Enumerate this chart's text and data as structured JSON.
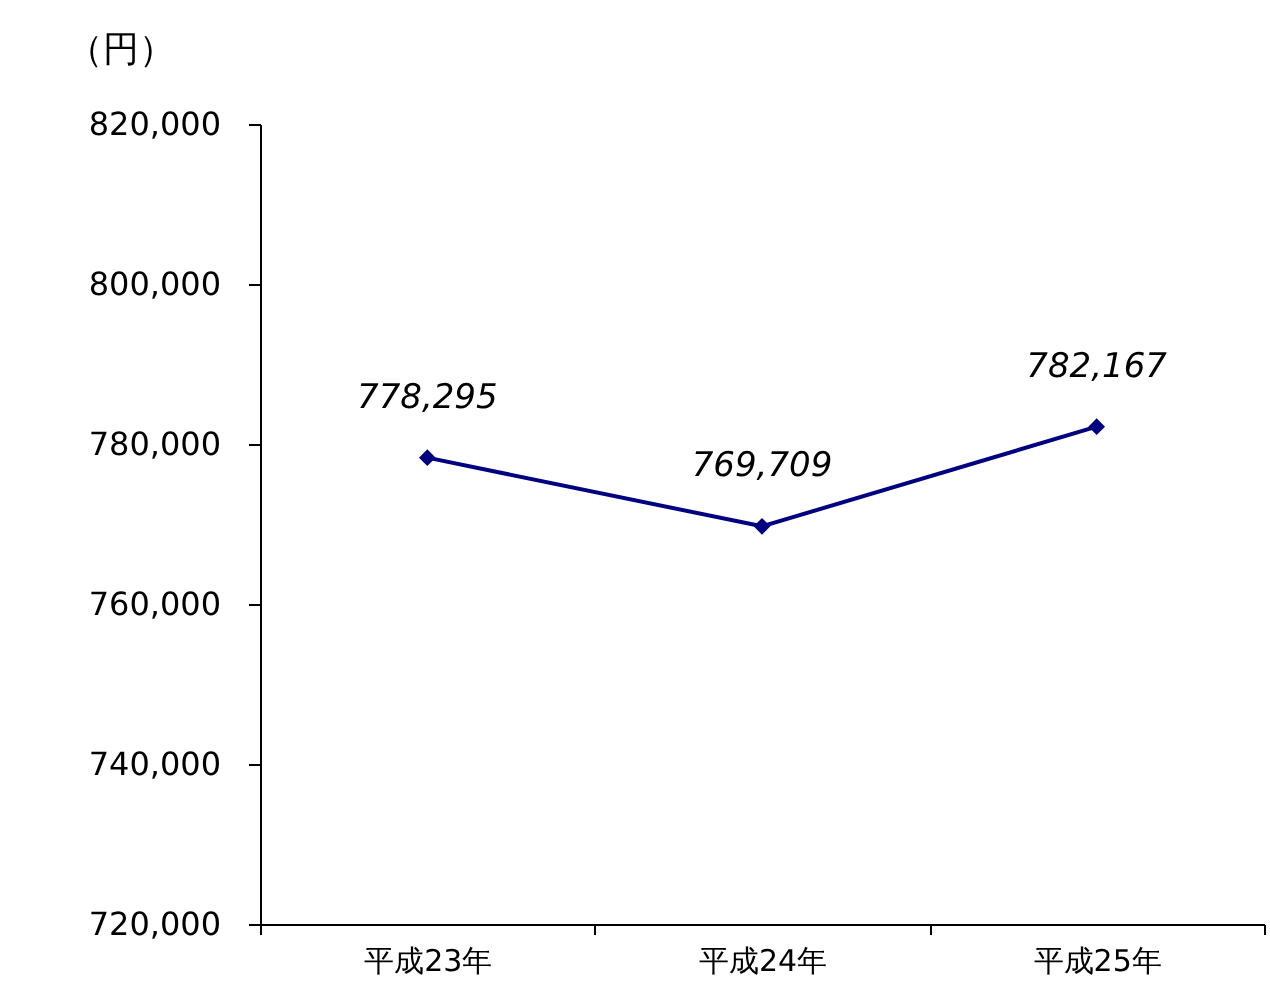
{
  "chart_data": {
    "type": "line",
    "ylabel": "（円）",
    "categories": [
      "平成23年",
      "平成24年",
      "平成25年"
    ],
    "series": [
      {
        "color": "#000080",
        "values": [
          778295,
          769709,
          782167
        ]
      }
    ],
    "value_labels": [
      "778,295",
      "769,709",
      "782,167"
    ],
    "ylim": [
      720000,
      820000
    ],
    "yticks": [
      {
        "value": 720000,
        "label": "720,000"
      },
      {
        "value": 740000,
        "label": "740,000"
      },
      {
        "value": 760000,
        "label": "760,000"
      },
      {
        "value": 780000,
        "label": "780,000"
      },
      {
        "value": 800000,
        "label": "800,000"
      },
      {
        "value": 820000,
        "label": "820,000"
      }
    ],
    "marker": "diamond",
    "line_style": "solid",
    "grid": false
  }
}
